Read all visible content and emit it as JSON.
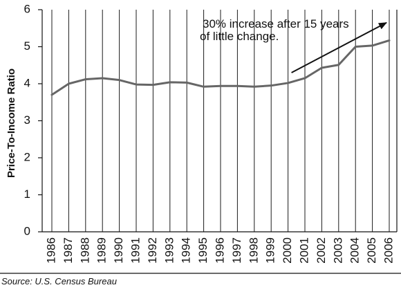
{
  "chart_data": {
    "type": "line",
    "title": "",
    "xlabel": "",
    "ylabel": "Price-To-Income Ratio",
    "x": [
      "1986",
      "1987",
      "1988",
      "1989",
      "1990",
      "1991",
      "1992",
      "1993",
      "1994",
      "1995",
      "1996",
      "1997",
      "1998",
      "1999",
      "2000",
      "2001",
      "2002",
      "2003",
      "2004",
      "2005",
      "2006"
    ],
    "values": [
      3.7,
      4.0,
      4.12,
      4.15,
      4.1,
      3.98,
      3.97,
      4.04,
      4.03,
      3.92,
      3.94,
      3.94,
      3.92,
      3.95,
      4.02,
      4.15,
      4.43,
      4.51,
      5.0,
      5.03,
      5.17
    ],
    "ylim": [
      0,
      6
    ],
    "yticks": [
      "0",
      "1",
      "2",
      "3",
      "4",
      "5",
      "6"
    ],
    "grid": "vertical lines at each year",
    "legend": "none",
    "annotation": {
      "lines": [
        "30% increase after 15 years",
        "of little change."
      ],
      "arrow_from_year": "2000",
      "arrow_to_year": "2006",
      "arrow_start_value": 4.3,
      "arrow_end_value": 5.65
    },
    "source": "Source: U.S. Census Bureau",
    "colors": {
      "series": "#666666",
      "grid": "#1a1a1a",
      "axis": "#111111",
      "text": "#111111"
    }
  }
}
